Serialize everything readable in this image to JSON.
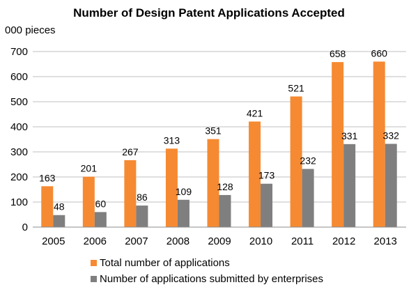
{
  "chart_data": {
    "type": "bar",
    "title": "Number of Design Patent Applications Accepted",
    "ylabel": "000 pieces",
    "xlabel": "",
    "categories": [
      "2005",
      "2006",
      "2007",
      "2008",
      "2009",
      "2010",
      "2011",
      "2012",
      "2013"
    ],
    "series": [
      {
        "name": "Total number of applications",
        "color": "#F58A32",
        "values": [
          163,
          201,
          267,
          313,
          351,
          421,
          521,
          658,
          660
        ]
      },
      {
        "name": "Number of applications submitted by enterprises",
        "color": "#7F7F7F",
        "values": [
          48,
          60,
          86,
          109,
          128,
          173,
          232,
          331,
          332
        ]
      }
    ],
    "ylim": [
      0,
      700
    ],
    "yticks": [
      0,
      100,
      200,
      300,
      400,
      500,
      600,
      700
    ],
    "grid": true,
    "legend_position": "bottom",
    "data_labels": true
  }
}
